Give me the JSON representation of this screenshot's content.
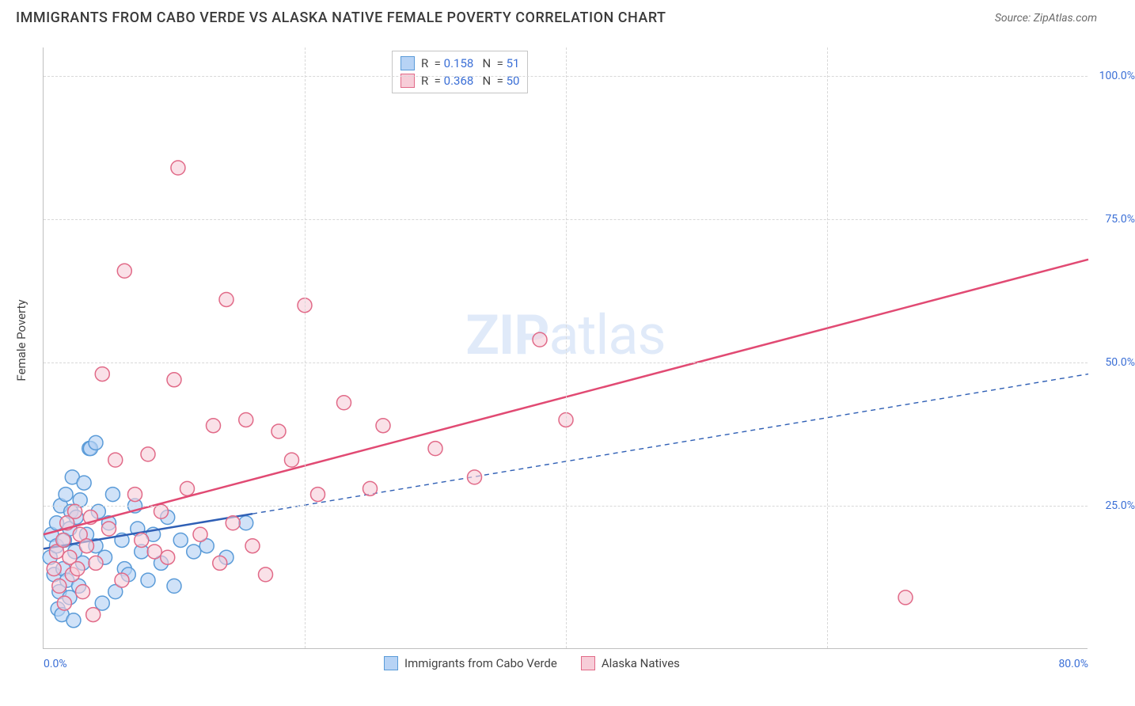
{
  "title": "IMMIGRANTS FROM CABO VERDE VS ALASKA NATIVE FEMALE POVERTY CORRELATION CHART",
  "source_label": "Source: ZipAtlas.com",
  "y_axis_label": "Female Poverty",
  "watermark_bold": "ZIP",
  "watermark_light": "atlas",
  "chart": {
    "type": "scatter",
    "xlim": [
      0,
      80
    ],
    "ylim": [
      0,
      105
    ],
    "x_ticks": [
      0,
      80
    ],
    "x_tick_labels": [
      "0.0%",
      "80.0%"
    ],
    "y_ticks": [
      25,
      50,
      75,
      100
    ],
    "y_tick_labels": [
      "25.0%",
      "50.0%",
      "75.0%",
      "100.0%"
    ],
    "x_grid_positions": [
      20,
      40,
      60
    ],
    "background_color": "#ffffff",
    "grid_color": "#d8d8d8",
    "axis_color": "#bfbfbf",
    "tick_label_color": "#3b6fd6",
    "marker_radius": 9,
    "marker_stroke_width": 1.5,
    "series": [
      {
        "name": "Immigrants from Cabo Verde",
        "label": "Immigrants from Cabo Verde",
        "marker_fill": "#b7d3f5",
        "marker_stroke": "#5a9bd8",
        "marker_opacity": 0.65,
        "line_color": "#2f5fb5",
        "line_style": "solid_then_dashed",
        "solid_line_width": 2.5,
        "dashed_line_width": 1.4,
        "dash_pattern": "6,5",
        "r_value": "0.158",
        "n_value": "51",
        "regression": {
          "x0": 0,
          "y0": 17.5,
          "x1": 80,
          "y1": 48,
          "solid_until_x": 16
        },
        "points": [
          [
            0.5,
            16
          ],
          [
            0.6,
            20
          ],
          [
            0.8,
            13
          ],
          [
            1.0,
            18
          ],
          [
            1.0,
            22
          ],
          [
            1.1,
            7
          ],
          [
            1.2,
            10
          ],
          [
            1.3,
            25
          ],
          [
            1.4,
            6
          ],
          [
            1.5,
            14
          ],
          [
            1.6,
            19
          ],
          [
            1.7,
            27
          ],
          [
            1.8,
            12
          ],
          [
            2.0,
            21
          ],
          [
            2.0,
            9
          ],
          [
            2.1,
            24
          ],
          [
            2.2,
            30
          ],
          [
            2.3,
            5
          ],
          [
            2.4,
            17
          ],
          [
            2.5,
            23
          ],
          [
            2.7,
            11
          ],
          [
            2.8,
            26
          ],
          [
            3.0,
            15
          ],
          [
            3.1,
            29
          ],
          [
            3.3,
            20
          ],
          [
            3.5,
            35
          ],
          [
            3.6,
            35
          ],
          [
            4.0,
            18
          ],
          [
            4.0,
            36
          ],
          [
            4.2,
            24
          ],
          [
            4.5,
            8
          ],
          [
            4.7,
            16
          ],
          [
            5.0,
            22
          ],
          [
            5.3,
            27
          ],
          [
            5.5,
            10
          ],
          [
            6.0,
            19
          ],
          [
            6.2,
            14
          ],
          [
            6.5,
            13
          ],
          [
            7.0,
            25
          ],
          [
            7.2,
            21
          ],
          [
            7.5,
            17
          ],
          [
            8.0,
            12
          ],
          [
            8.4,
            20
          ],
          [
            9.0,
            15
          ],
          [
            9.5,
            23
          ],
          [
            10.0,
            11
          ],
          [
            10.5,
            19
          ],
          [
            11.5,
            17
          ],
          [
            12.5,
            18
          ],
          [
            14.0,
            16
          ],
          [
            15.5,
            22
          ]
        ]
      },
      {
        "name": "Alaska Natives",
        "label": "Alaska Natives",
        "marker_fill": "#f7cdd8",
        "marker_stroke": "#e16a88",
        "marker_opacity": 0.6,
        "line_color": "#e14a73",
        "line_style": "solid",
        "solid_line_width": 2.5,
        "r_value": "0.368",
        "n_value": "50",
        "regression": {
          "x0": 0,
          "y0": 20,
          "x1": 80,
          "y1": 68
        },
        "points": [
          [
            0.8,
            14
          ],
          [
            1.0,
            17
          ],
          [
            1.2,
            11
          ],
          [
            1.5,
            19
          ],
          [
            1.6,
            8
          ],
          [
            1.8,
            22
          ],
          [
            2.0,
            16
          ],
          [
            2.2,
            13
          ],
          [
            2.4,
            24
          ],
          [
            2.6,
            14
          ],
          [
            2.8,
            20
          ],
          [
            3.0,
            10
          ],
          [
            3.3,
            18
          ],
          [
            3.6,
            23
          ],
          [
            3.8,
            6
          ],
          [
            4.0,
            15
          ],
          [
            4.5,
            48
          ],
          [
            5.0,
            21
          ],
          [
            5.5,
            33
          ],
          [
            6.0,
            12
          ],
          [
            6.2,
            66
          ],
          [
            7.0,
            27
          ],
          [
            7.5,
            19
          ],
          [
            8.0,
            34
          ],
          [
            8.5,
            17
          ],
          [
            9.0,
            24
          ],
          [
            9.5,
            16
          ],
          [
            10.0,
            47
          ],
          [
            10.3,
            84
          ],
          [
            11.0,
            28
          ],
          [
            12.0,
            20
          ],
          [
            13.0,
            39
          ],
          [
            13.5,
            15
          ],
          [
            14.0,
            61
          ],
          [
            14.5,
            22
          ],
          [
            15.5,
            40
          ],
          [
            16.0,
            18
          ],
          [
            17.0,
            13
          ],
          [
            18.0,
            38
          ],
          [
            19.0,
            33
          ],
          [
            20.0,
            60
          ],
          [
            21.0,
            27
          ],
          [
            23.0,
            43
          ],
          [
            25.0,
            28
          ],
          [
            26.0,
            39
          ],
          [
            30.0,
            35
          ],
          [
            33.0,
            30
          ],
          [
            38.0,
            54
          ],
          [
            40.0,
            40
          ],
          [
            66.0,
            9
          ]
        ]
      }
    ],
    "legend_top": {
      "r_label": "R  = ",
      "n_label": "   N  = "
    }
  }
}
